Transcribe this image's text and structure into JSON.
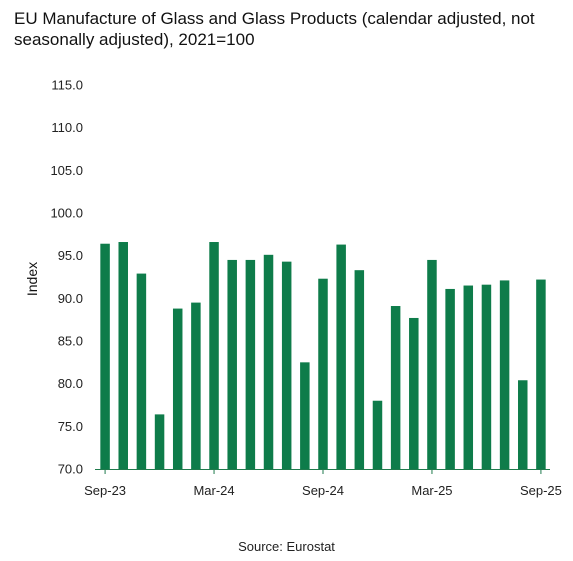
{
  "chart_data": {
    "type": "bar",
    "title": "EU Manufacture of Glass and Glass Products (calendar adjusted, not seasonally adjusted), 2021=100",
    "ylabel": "Index",
    "xlabel": "",
    "ylim": [
      70,
      115
    ],
    "yticks": [
      "70.0",
      "75.0",
      "80.0",
      "85.0",
      "90.0",
      "95.0",
      "100.0",
      "105.0",
      "110.0",
      "115.0"
    ],
    "xtick_labels": [
      {
        "category": "Sep-23",
        "label": "Sep-23"
      },
      {
        "category": "Mar-24",
        "label": "Mar-24"
      },
      {
        "category": "Sep-24",
        "label": "Sep-24"
      },
      {
        "category": "Mar-25",
        "label": "Mar-25"
      },
      {
        "category": "Sep-25",
        "label": "Sep-25"
      }
    ],
    "categories": [
      "Sep-23",
      "Oct-23",
      "Nov-23",
      "Dec-23",
      "Jan-24",
      "Feb-24",
      "Mar-24",
      "Apr-24",
      "May-24",
      "Jun-24",
      "Jul-24",
      "Aug-24",
      "Sep-24",
      "Oct-24",
      "Nov-24",
      "Dec-24",
      "Jan-25",
      "Feb-25",
      "Mar-25",
      "Apr-25",
      "May-25",
      "Jun-25",
      "Jul-25",
      "Aug-25",
      "Sep-25"
    ],
    "values": [
      96.4,
      96.6,
      92.9,
      76.4,
      88.8,
      89.5,
      96.6,
      94.5,
      94.5,
      95.1,
      94.3,
      82.5,
      92.3,
      96.3,
      93.3,
      78.0,
      89.1,
      87.7,
      94.5,
      91.1,
      91.5,
      91.6,
      92.1,
      80.4,
      92.2
    ],
    "grid": false,
    "legend": "none",
    "colors": {
      "bar": "#0e7c4a",
      "axis": "#1f7a4c"
    }
  },
  "source": "Source: Eurostat"
}
